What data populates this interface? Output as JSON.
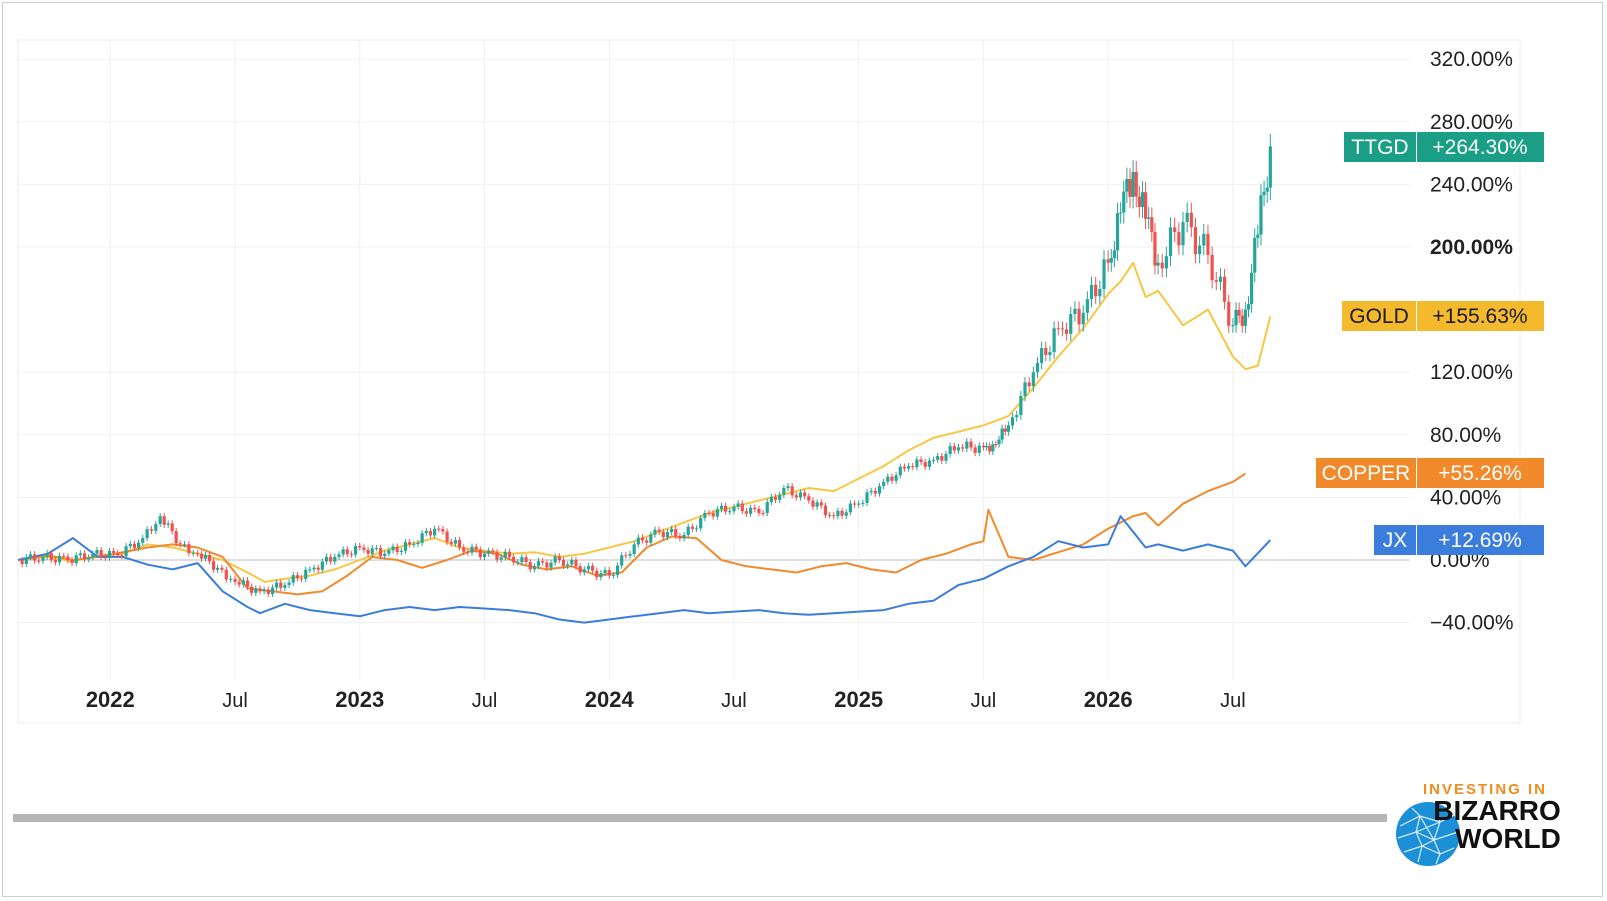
{
  "chart_data": {
    "type": "line",
    "yaxis": {
      "ticks": [
        "320.00%",
        "280.00%",
        "240.00%",
        "200.00%",
        "120.00%",
        "80.00%",
        "40.00%",
        "0.00%",
        "−40.00%"
      ],
      "tick_values": [
        320,
        280,
        240,
        200,
        120,
        80,
        40,
        0,
        -40
      ],
      "bold_tick": "200.00%",
      "range": [
        -60,
        335
      ]
    },
    "xaxis": {
      "ticks": [
        {
          "label": "2022",
          "x": 2022.0,
          "bold": true
        },
        {
          "label": "Jul",
          "x": 2022.5,
          "bold": false
        },
        {
          "label": "2023",
          "x": 2023.0,
          "bold": true
        },
        {
          "label": "Jul",
          "x": 2023.5,
          "bold": false
        },
        {
          "label": "2024",
          "x": 2024.0,
          "bold": true
        },
        {
          "label": "Jul",
          "x": 2024.5,
          "bold": false
        },
        {
          "label": "2025",
          "x": 2025.0,
          "bold": true
        },
        {
          "label": "Jul",
          "x": 2025.5,
          "bold": false
        },
        {
          "label": "2026",
          "x": 2026.0,
          "bold": true
        },
        {
          "label": "Jul",
          "x": 2026.5,
          "bold": false
        }
      ],
      "range": [
        2021.63,
        2027.25
      ]
    },
    "grid": true,
    "series": [
      {
        "name": "GOLD",
        "label_value": "+155.63%",
        "color": "#f7c744",
        "tag_color": "#f5b92e",
        "x": [
          2021.63,
          2021.75,
          2021.85,
          2021.95,
          2022.05,
          2022.15,
          2022.25,
          2022.35,
          2022.45,
          2022.55,
          2022.62,
          2022.7,
          2022.8,
          2022.9,
          2023.0,
          2023.1,
          2023.2,
          2023.3,
          2023.4,
          2023.5,
          2023.6,
          2023.7,
          2023.8,
          2023.9,
          2024.0,
          2024.1,
          2024.2,
          2024.3,
          2024.4,
          2024.5,
          2024.6,
          2024.7,
          2024.8,
          2024.9,
          2025.0,
          2025.1,
          2025.2,
          2025.3,
          2025.4,
          2025.5,
          2025.6,
          2025.7,
          2025.8,
          2025.9,
          2026.0,
          2026.05,
          2026.1,
          2026.15,
          2026.2,
          2026.3,
          2026.4,
          2026.5,
          2026.55,
          2026.6,
          2026.65
        ],
        "y": [
          0,
          2,
          -1,
          3,
          4,
          10,
          8,
          4,
          0,
          -8,
          -14,
          -12,
          -10,
          -6,
          0,
          6,
          10,
          14,
          8,
          6,
          4,
          5,
          2,
          4,
          8,
          12,
          18,
          24,
          30,
          34,
          38,
          42,
          46,
          44,
          52,
          60,
          70,
          78,
          82,
          86,
          92,
          110,
          130,
          148,
          170,
          178,
          190,
          168,
          172,
          150,
          160,
          130,
          122,
          124,
          155.63
        ]
      },
      {
        "name": "COPPER",
        "label_value": "+55.26%",
        "color": "#f08a2b",
        "tag_color": "#f08a2b",
        "x": [
          2021.63,
          2021.75,
          2021.85,
          2021.95,
          2022.05,
          2022.15,
          2022.25,
          2022.35,
          2022.45,
          2022.5,
          2022.55,
          2022.65,
          2022.75,
          2022.85,
          2022.95,
          2023.05,
          2023.15,
          2023.25,
          2023.35,
          2023.45,
          2023.55,
          2023.65,
          2023.75,
          2023.85,
          2023.95,
          2024.05,
          2024.15,
          2024.25,
          2024.35,
          2024.45,
          2024.55,
          2024.65,
          2024.75,
          2024.85,
          2024.95,
          2025.05,
          2025.15,
          2025.25,
          2025.35,
          2025.45,
          2025.5,
          2025.52,
          2025.6,
          2025.7,
          2025.8,
          2025.9,
          2026.0,
          2026.1,
          2026.15,
          2026.2,
          2026.3,
          2026.4,
          2026.5,
          2026.55
        ],
        "y": [
          0,
          3,
          0,
          2,
          5,
          8,
          10,
          8,
          2,
          -8,
          -18,
          -20,
          -22,
          -20,
          -10,
          2,
          0,
          -5,
          0,
          6,
          4,
          -3,
          -6,
          -4,
          -10,
          -8,
          8,
          15,
          14,
          0,
          -4,
          -6,
          -8,
          -4,
          -2,
          -6,
          -8,
          0,
          4,
          10,
          12,
          32,
          2,
          0,
          5,
          10,
          20,
          28,
          30,
          22,
          36,
          44,
          50,
          55.26
        ]
      },
      {
        "name": "JX",
        "label_value": "+12.69%",
        "color": "#3b7ddd",
        "tag_color": "#3b7ddd",
        "x": [
          2021.63,
          2021.75,
          2021.85,
          2021.95,
          2022.05,
          2022.15,
          2022.25,
          2022.35,
          2022.45,
          2022.55,
          2022.6,
          2022.7,
          2022.8,
          2022.9,
          2023.0,
          2023.1,
          2023.2,
          2023.3,
          2023.4,
          2023.5,
          2023.6,
          2023.7,
          2023.8,
          2023.9,
          2024.0,
          2024.1,
          2024.2,
          2024.3,
          2024.4,
          2024.5,
          2024.6,
          2024.7,
          2024.8,
          2024.9,
          2025.0,
          2025.1,
          2025.2,
          2025.3,
          2025.4,
          2025.5,
          2025.6,
          2025.7,
          2025.8,
          2025.9,
          2026.0,
          2026.05,
          2026.1,
          2026.15,
          2026.2,
          2026.3,
          2026.4,
          2026.5,
          2026.55,
          2026.65
        ],
        "y": [
          0,
          4,
          14,
          2,
          2,
          -3,
          -6,
          -2,
          -20,
          -30,
          -34,
          -28,
          -32,
          -34,
          -36,
          -32,
          -30,
          -32,
          -30,
          -31,
          -32,
          -34,
          -38,
          -40,
          -38,
          -36,
          -34,
          -32,
          -34,
          -33,
          -32,
          -34,
          -35,
          -34,
          -33,
          -32,
          -28,
          -26,
          -16,
          -12,
          -4,
          2,
          12,
          8,
          10,
          28,
          18,
          8,
          10,
          6,
          10,
          6,
          -4,
          12.69
        ]
      },
      {
        "name": "TTGD",
        "label_value": "+264.30%",
        "color": "#26a69a",
        "down_color": "#ef5350",
        "tag_color": "#1a9f86",
        "type": "candlestick",
        "x": [
          2021.63,
          2021.73,
          2021.83,
          2021.93,
          2022.03,
          2022.13,
          2022.2,
          2022.28,
          2022.35,
          2022.43,
          2022.5,
          2022.6,
          2022.7,
          2022.8,
          2022.9,
          2023.0,
          2023.1,
          2023.2,
          2023.3,
          2023.4,
          2023.5,
          2023.6,
          2023.7,
          2023.8,
          2023.9,
          2024.0,
          2024.1,
          2024.2,
          2024.3,
          2024.4,
          2024.5,
          2024.6,
          2024.7,
          2024.8,
          2024.9,
          2025.0,
          2025.1,
          2025.2,
          2025.3,
          2025.4,
          2025.5,
          2025.55,
          2025.6,
          2025.7,
          2025.8,
          2025.9,
          2026.0,
          2026.05,
          2026.1,
          2026.15,
          2026.2,
          2026.3,
          2026.4,
          2026.5,
          2026.55,
          2026.6,
          2026.65
        ],
        "y": [
          0,
          2,
          0,
          4,
          3,
          14,
          28,
          10,
          4,
          -5,
          -14,
          -20,
          -16,
          -6,
          2,
          8,
          4,
          10,
          20,
          8,
          4,
          2,
          -4,
          0,
          -6,
          -10,
          10,
          18,
          16,
          30,
          34,
          30,
          46,
          38,
          28,
          36,
          50,
          60,
          64,
          72,
          72,
          74,
          86,
          120,
          148,
          158,
          190,
          222,
          248,
          218,
          190,
          216,
          195,
          150,
          160,
          208,
          264.3
        ]
      }
    ]
  },
  "logo": {
    "line1": "INVESTING IN",
    "line2": "BIZARRO",
    "line3": "WORLD"
  }
}
